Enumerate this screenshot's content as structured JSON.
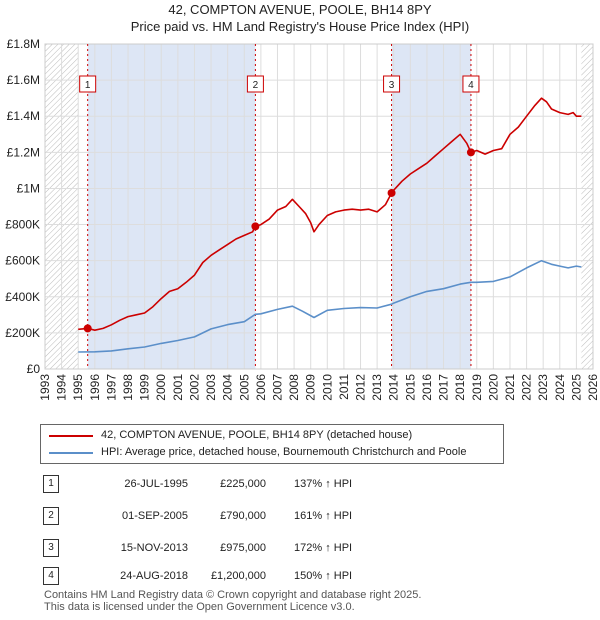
{
  "title_line1": "42, COMPTON AVENUE, POOLE, BH14 8PY",
  "title_line2": "Price paid vs. HM Land Registry's House Price Index (HPI)",
  "legend": {
    "property": "42, COMPTON AVENUE, POOLE, BH14 8PY (detached house)",
    "hpi": "HPI: Average price, detached house, Bournemouth Christchurch and Poole"
  },
  "transactions": [
    {
      "num": "1",
      "date": "26-JUL-1995",
      "price": "£225,000",
      "hpi": "137% ↑ HPI"
    },
    {
      "num": "2",
      "date": "01-SEP-2005",
      "price": "£790,000",
      "hpi": "161% ↑ HPI"
    },
    {
      "num": "3",
      "date": "15-NOV-2013",
      "price": "£975,000",
      "hpi": "172% ↑ HPI"
    },
    {
      "num": "4",
      "date": "24-AUG-2018",
      "price": "£1,200,000",
      "hpi": "150% ↑ HPI"
    }
  ],
  "footer_line1": "Contains HM Land Registry data © Crown copyright and database right 2025.",
  "footer_line2": "This data is licensed under the Open Government Licence v3.0.",
  "colors": {
    "property": "#cc0000",
    "hpi": "#5b8fc9",
    "grid": "#dddddd",
    "shade": "#dde6f5",
    "hatch": "#bbbbbb"
  },
  "chart_data": {
    "type": "line",
    "xlim": [
      1993,
      2026
    ],
    "ylim": [
      0,
      1800000
    ],
    "yticks": [
      0,
      200000,
      400000,
      600000,
      800000,
      1000000,
      1200000,
      1400000,
      1600000,
      1800000
    ],
    "ytick_labels": [
      "£0",
      "£200K",
      "£400K",
      "£600K",
      "£800K",
      "£1M",
      "£1.2M",
      "£1.4M",
      "£1.6M",
      "£1.8M"
    ],
    "xticks": [
      1993,
      1994,
      1995,
      1996,
      1997,
      1998,
      1999,
      2000,
      2001,
      2002,
      2003,
      2004,
      2005,
      2006,
      2007,
      2008,
      2009,
      2010,
      2011,
      2012,
      2013,
      2014,
      2015,
      2016,
      2017,
      2018,
      2019,
      2020,
      2021,
      2022,
      2023,
      2024,
      2025,
      2026
    ],
    "xtick_labels": [
      "1993",
      "1994",
      "1995",
      "1996",
      "1997",
      "1998",
      "1999",
      "2000",
      "2001",
      "2002",
      "2003",
      "2004",
      "2005",
      "2006",
      "2007",
      "2008",
      "2009",
      "2010",
      "2011",
      "2012",
      "2013",
      "2014",
      "2015",
      "2016",
      "2017",
      "2018",
      "2019",
      "2020",
      "2021",
      "2022",
      "2023",
      "2024",
      "2025",
      "2026"
    ],
    "data_start": 1995.0,
    "data_end": 2025.3,
    "shaded_spans": [
      [
        1995.57,
        2005.67
      ],
      [
        2013.87,
        2018.65
      ]
    ],
    "sales": [
      {
        "label": "1",
        "x": 1995.57,
        "y": 225000
      },
      {
        "label": "2",
        "x": 2005.67,
        "y": 790000
      },
      {
        "label": "3",
        "x": 2013.87,
        "y": 975000
      },
      {
        "label": "4",
        "x": 2018.65,
        "y": 1200000
      }
    ],
    "series": [
      {
        "name": "42, COMPTON AVENUE, POOLE, BH14 8PY (detached house)",
        "x": [
          1995.0,
          1995.57,
          1996.0,
          1996.5,
          1997.0,
          1997.5,
          1998.0,
          1998.5,
          1999.0,
          1999.5,
          2000.0,
          2000.5,
          2001.0,
          2001.5,
          2002.0,
          2002.5,
          2003.0,
          2003.5,
          2004.0,
          2004.5,
          2005.0,
          2005.5,
          2005.67,
          2006.0,
          2006.5,
          2007.0,
          2007.5,
          2007.9,
          2008.3,
          2008.7,
          2009.0,
          2009.2,
          2009.5,
          2010.0,
          2010.5,
          2011.0,
          2011.5,
          2012.0,
          2012.5,
          2013.0,
          2013.5,
          2013.87,
          2014.0,
          2014.5,
          2015.0,
          2015.5,
          2016.0,
          2016.5,
          2017.0,
          2017.5,
          2018.0,
          2018.4,
          2018.65,
          2019.0,
          2019.5,
          2020.0,
          2020.5,
          2021.0,
          2021.5,
          2022.0,
          2022.5,
          2022.9,
          2023.2,
          2023.5,
          2024.0,
          2024.5,
          2024.8,
          2025.0,
          2025.3
        ],
        "y": [
          220000,
          225000,
          215000,
          225000,
          245000,
          270000,
          290000,
          300000,
          310000,
          345000,
          390000,
          430000,
          445000,
          480000,
          520000,
          590000,
          630000,
          660000,
          690000,
          720000,
          740000,
          760000,
          790000,
          800000,
          830000,
          880000,
          900000,
          940000,
          900000,
          860000,
          810000,
          760000,
          800000,
          850000,
          870000,
          880000,
          885000,
          880000,
          885000,
          870000,
          910000,
          975000,
          990000,
          1040000,
          1080000,
          1110000,
          1140000,
          1180000,
          1220000,
          1260000,
          1300000,
          1250000,
          1200000,
          1210000,
          1190000,
          1210000,
          1220000,
          1300000,
          1340000,
          1400000,
          1460000,
          1500000,
          1480000,
          1440000,
          1420000,
          1410000,
          1420000,
          1400000,
          1400000
        ]
      },
      {
        "name": "HPI: Average price, detached house, Bournemouth Christchurch and Poole",
        "x": [
          1995.0,
          1996.0,
          1997.0,
          1998.0,
          1999.0,
          2000.0,
          2001.0,
          2002.0,
          2003.0,
          2004.0,
          2005.0,
          2005.67,
          2006.0,
          2007.0,
          2007.9,
          2008.5,
          2009.2,
          2010.0,
          2011.0,
          2012.0,
          2013.0,
          2013.87,
          2014.0,
          2015.0,
          2016.0,
          2017.0,
          2018.0,
          2018.65,
          2019.0,
          2020.0,
          2021.0,
          2022.0,
          2022.9,
          2023.5,
          2024.0,
          2024.5,
          2025.0,
          2025.3
        ],
        "y": [
          94000,
          95000,
          100000,
          112000,
          122000,
          142000,
          158000,
          178000,
          222000,
          246000,
          262000,
          303000,
          306000,
          330000,
          348000,
          320000,
          285000,
          325000,
          335000,
          340000,
          338000,
          359000,
          365000,
          400000,
          430000,
          445000,
          470000,
          480000,
          480000,
          485000,
          510000,
          560000,
          600000,
          580000,
          570000,
          560000,
          570000,
          565000
        ]
      }
    ]
  }
}
